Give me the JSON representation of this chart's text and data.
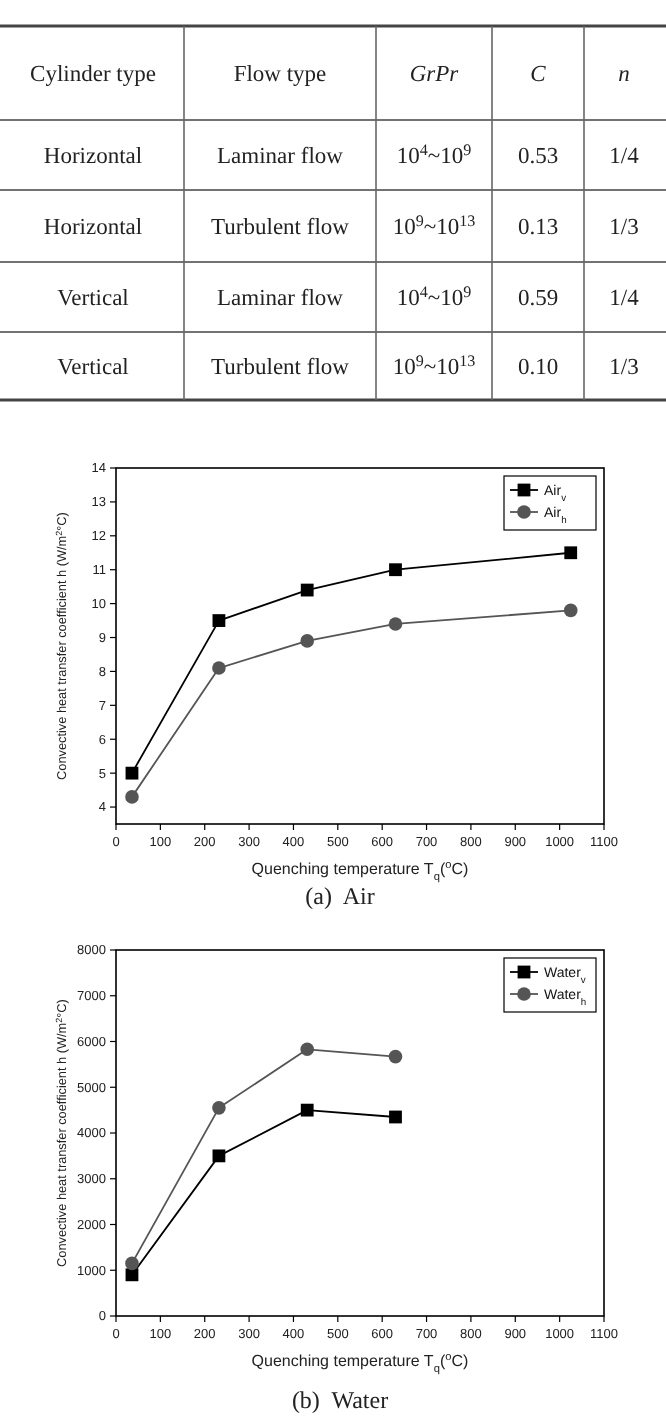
{
  "chart_data": [
    {
      "type": "other",
      "categories": [
        "Cylinder type",
        "Flow type",
        "GrPr",
        "C",
        "n"
      ],
      "cell_labels": [
        [
          "Horizontal",
          "Laminar flow",
          "10$^{4}$~10$^{9}$",
          "0.53",
          "1/4"
        ],
        [
          "Horizontal",
          "Turbulent flow",
          "10$^{9}$~10$^{13}$",
          "0.13",
          "1/3"
        ],
        [
          "Vertical",
          "Laminar flow",
          "10$^{4}$~10$^{9}$",
          "0.59",
          "1/4"
        ],
        [
          "Vertical",
          "Turbulent flow",
          "10$^{9}$~10$^{13}$",
          "0.10",
          "1/3"
        ]
      ]
    },
    {
      "type": "line",
      "xlabel": "Quenching temperature T$_{q}$($^{o}$C)",
      "ylabel": "Convective heat transfer coefficient h (W/m$^{2}$°C)",
      "annotations": [
        "(a)  Air"
      ],
      "xlim": [
        0,
        1100
      ],
      "xticks": [
        0,
        100,
        200,
        300,
        400,
        500,
        600,
        700,
        800,
        900,
        1000,
        1100
      ],
      "ylim": [
        3.5,
        14
      ],
      "yticks": [
        4,
        5,
        6,
        7,
        8,
        9,
        10,
        11,
        12,
        13,
        14
      ],
      "legend": "top right",
      "series": [
        {
          "name": "Air$_{v}$",
          "color": "#000000",
          "marker": "square",
          "x": [
            36,
            232,
            431,
            630,
            1025
          ],
          "values": [
            5.0,
            9.5,
            10.4,
            11.0,
            11.5
          ]
        },
        {
          "name": "Air$_{h}$",
          "color": "#555555",
          "marker": "circle",
          "x": [
            36,
            232,
            431,
            630,
            1025
          ],
          "values": [
            4.3,
            8.1,
            8.9,
            9.4,
            9.8
          ]
        }
      ]
    },
    {
      "type": "line",
      "xlabel": "Quenching temperature T$_{q}$($^{o}$C)",
      "ylabel": "Convective heat transfer coefficient h (W/m$^{2}$°C)",
      "annotations": [
        "(b)  Water"
      ],
      "xlim": [
        0,
        1100
      ],
      "xticks": [
        0,
        100,
        200,
        300,
        400,
        500,
        600,
        700,
        800,
        900,
        1000,
        1100
      ],
      "ylim": [
        0,
        8000
      ],
      "yticks": [
        0,
        1000,
        2000,
        3000,
        4000,
        5000,
        6000,
        7000,
        8000
      ],
      "legend": "top right",
      "series": [
        {
          "name": "Water$_{v}$",
          "color": "#000000",
          "marker": "square",
          "x": [
            36,
            232,
            431,
            630
          ],
          "values": [
            900,
            3500,
            4500,
            4350
          ]
        },
        {
          "name": "Water$_{h}$",
          "color": "#555555",
          "marker": "circle",
          "x": [
            36,
            232,
            431,
            630
          ],
          "values": [
            1150,
            4550,
            5830,
            5670
          ]
        }
      ]
    }
  ]
}
